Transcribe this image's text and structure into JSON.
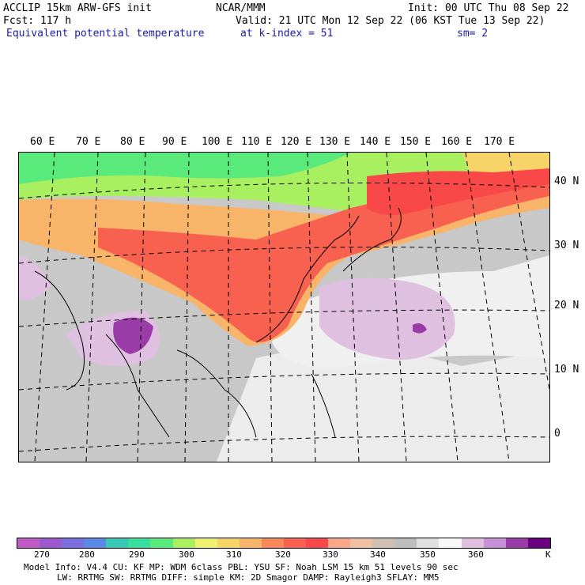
{
  "header": {
    "model": "ACCLIP 15km ARW-GFS init",
    "org": "NCAR/MMM",
    "init": "Init: 00 UTC Thu 08 Sep 22",
    "fcst": "Fcst:  117 h",
    "valid": "Valid: 21 UTC Mon 12 Sep 22 (06 KST Tue 13 Sep 22)",
    "field": "Equivalent potential temperature",
    "level": "at k-index =  51",
    "sm": "sm= 2"
  },
  "map": {
    "lon_labels": [
      "60 E",
      "70 E",
      "80 E",
      "90 E",
      "100 E",
      "110 E",
      "120 E",
      "130 E",
      "140 E",
      "150 E",
      "160 E",
      "170 E"
    ],
    "lat_labels": [
      "40 N",
      "30 N",
      "20 N",
      "10 N",
      "0"
    ]
  },
  "colorbar": {
    "colors": [
      "#c15ac7",
      "#9d5ad0",
      "#7a6ee0",
      "#5a8ae6",
      "#38c8b8",
      "#38e0a0",
      "#5aea7c",
      "#a8f060",
      "#eef070",
      "#f8d468",
      "#f8b468",
      "#f88858",
      "#f86050",
      "#f84848",
      "#f8a888",
      "#f0c0a0",
      "#d0c0b4",
      "#bebebe",
      "#e0e0e0",
      "#f8f8f8",
      "#e0c0e0",
      "#c890d8",
      "#9a3ca8",
      "#6a0080"
    ],
    "labels": [
      "270",
      "280",
      "290",
      "300",
      "310",
      "320",
      "330",
      "340",
      "350",
      "360",
      "K"
    ]
  },
  "footer": {
    "line1": "Model Info: V4.4     CU: KF      MP: WDM 6class  PBL: YSU      SF: Noah LSM     15 km   51 levels   90 sec",
    "line2": "LW: RRTMG   SW: RRTMG  DIFF: simple KM: 2D Smagor DAMP: Rayleigh3  SFLAY: MM5"
  }
}
